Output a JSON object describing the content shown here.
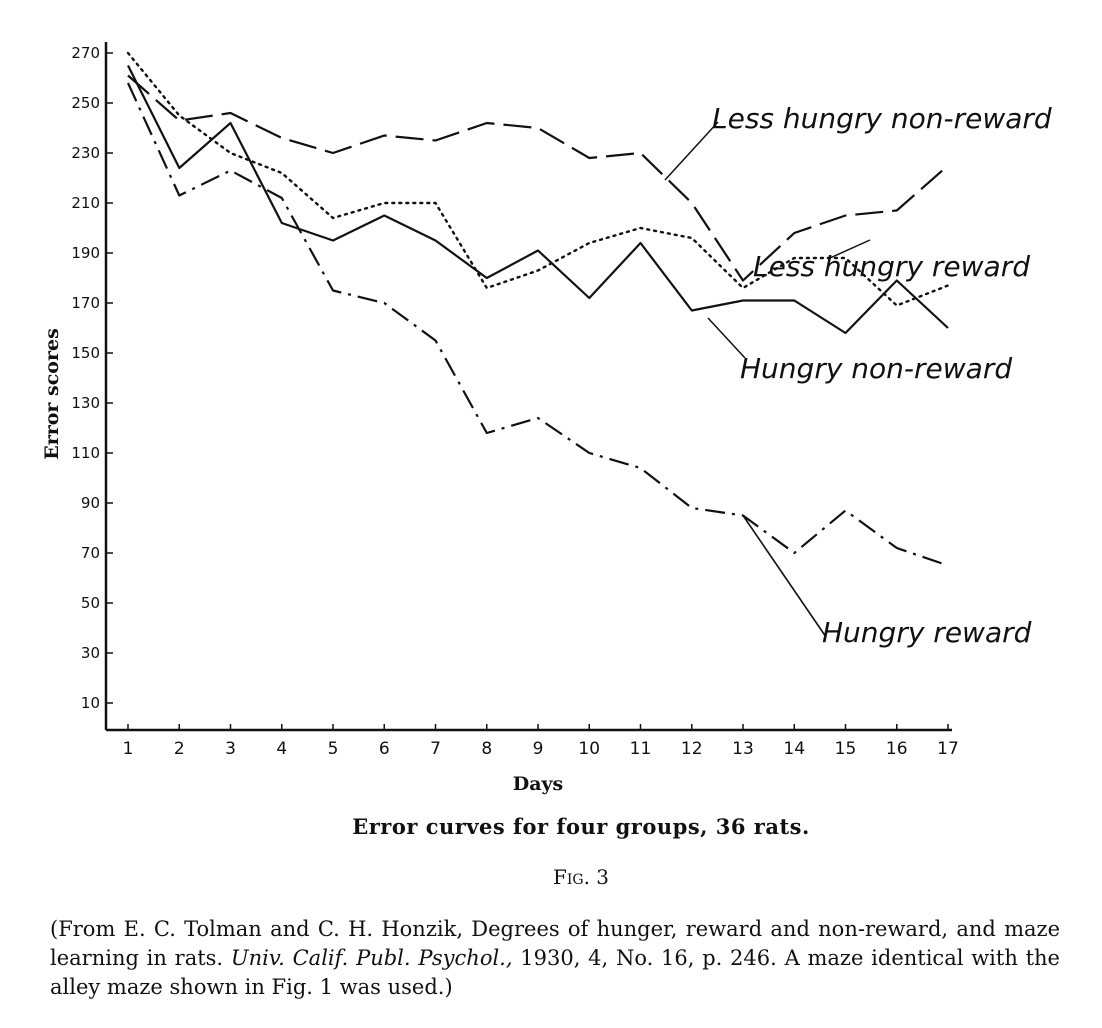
{
  "chart_data": {
    "type": "line",
    "xlabel": "Days",
    "ylabel": "Error scores",
    "xlim": [
      1,
      17
    ],
    "ylim": [
      0,
      270
    ],
    "x": [
      1,
      2,
      3,
      4,
      5,
      6,
      7,
      8,
      9,
      10,
      11,
      12,
      13,
      14,
      15,
      16,
      17
    ],
    "x_tick_labels": [
      "1",
      "2",
      "3",
      "4",
      "5",
      "6",
      "7",
      "8",
      "9",
      "10",
      "11",
      "12",
      "13",
      "14",
      "15",
      "16",
      "17"
    ],
    "y_ticks": [
      10,
      30,
      50,
      70,
      90,
      110,
      130,
      150,
      170,
      190,
      210,
      230,
      250,
      270
    ],
    "y_tick_labels": [
      "10",
      "30",
      "50",
      "70",
      "90",
      "110",
      "130",
      "150",
      "170",
      "190",
      "210",
      "230",
      "250",
      "270"
    ],
    "grid": false,
    "series": [
      {
        "name": "Less hungry non-reward",
        "line_style": "long-dash",
        "values": [
          261,
          243,
          246,
          236,
          230,
          237,
          235,
          242,
          240,
          228,
          230,
          210,
          179,
          198,
          205,
          207,
          225
        ]
      },
      {
        "name": "Less hungry reward",
        "line_style": "dotted",
        "values": [
          270,
          245,
          230,
          222,
          204,
          210,
          210,
          176,
          183,
          194,
          200,
          196,
          176,
          188,
          188,
          169,
          177
        ]
      },
      {
        "name": "Hungry non-reward",
        "line_style": "solid",
        "values": [
          265,
          224,
          242,
          202,
          195,
          205,
          195,
          180,
          191,
          172,
          194,
          167,
          171,
          171,
          158,
          179,
          160
        ]
      },
      {
        "name": "Hungry reward",
        "line_style": "dash-dot",
        "values": [
          258,
          213,
          223,
          212,
          175,
          170,
          155,
          118,
          124,
          110,
          104,
          88,
          85,
          70,
          87,
          72,
          65
        ],
        "branch_solid": {
          "x": [
            13,
            14.6
          ],
          "values": [
            85,
            37
          ]
        }
      }
    ],
    "title": "Error curves for four groups, 36 rats."
  },
  "figure": {
    "label": "Fig. 3"
  },
  "source_note": {
    "part1": "(From E. C. Tolman and C. H. Honzik, Degrees of hunger, reward and non-reward, and maze learning in rats. ",
    "journal": "Univ. Calif. Publ. Psychol.,",
    "part2": " 1930, 4, No. 16, p. 246.  A maze identical with the alley maze shown in Fig. 1 was used.)"
  }
}
